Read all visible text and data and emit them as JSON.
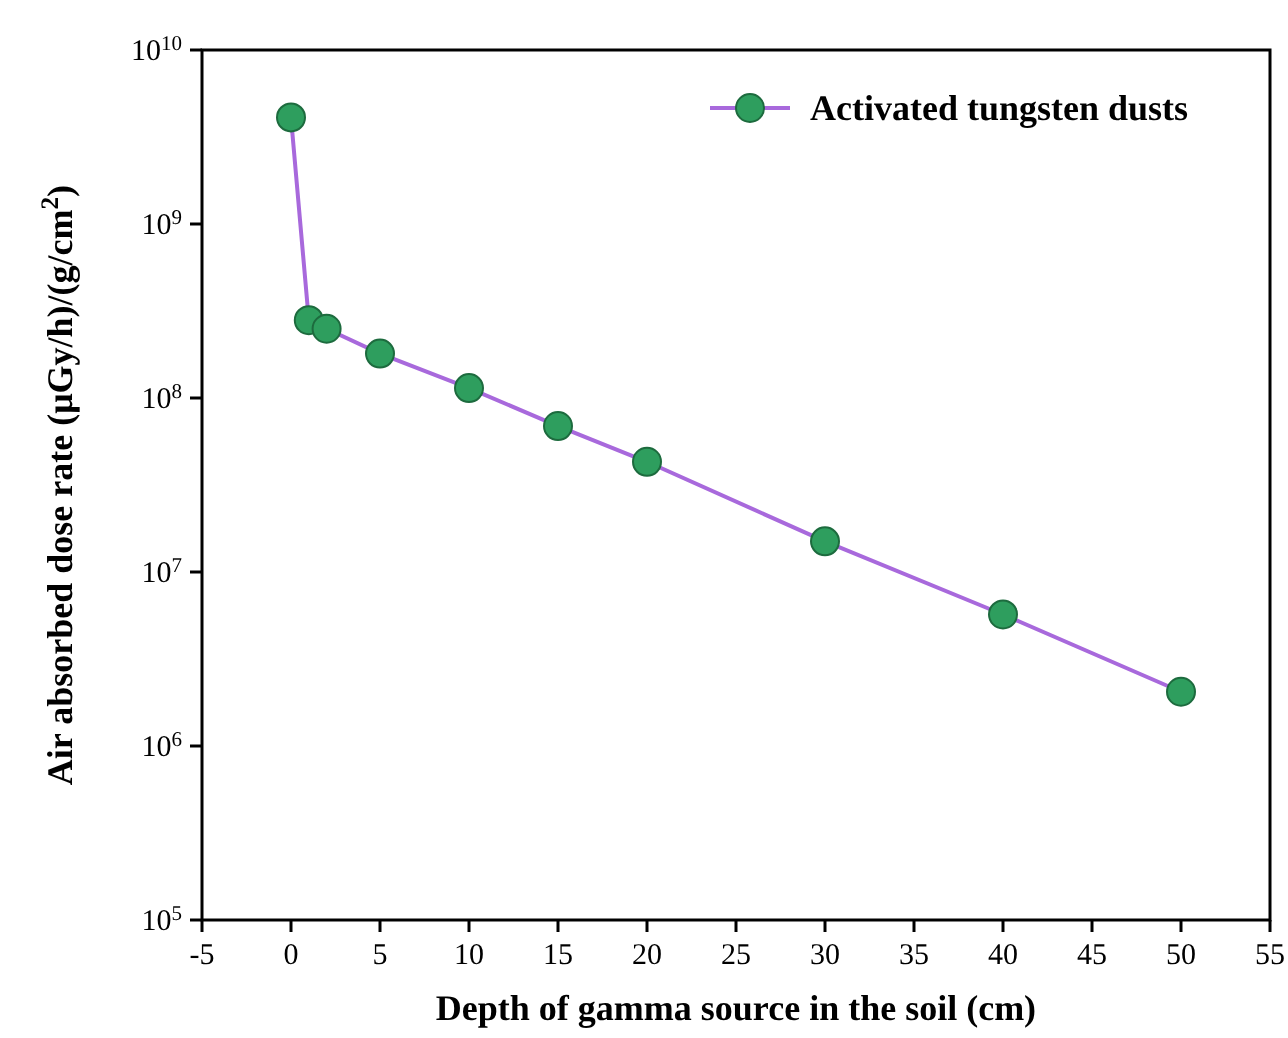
{
  "chart_data": {
    "type": "line",
    "xlabel": "Depth of gamma source in the soil (cm)",
    "ylabel": "Air absorbed dose rate (μGy/h)/(g/cm$^{2}$)",
    "x": [
      0,
      1,
      2,
      5,
      10,
      15,
      20,
      30,
      40,
      50
    ],
    "series": [
      {
        "name": "Activated tungsten dusts",
        "color": "#a869dc",
        "values": [
          4100000000.0,
          280000000.0,
          250000000.0,
          180000000.0,
          114000000.0,
          69000000.0,
          43000000.0,
          15000000.0,
          5700000.0,
          2050000.0
        ]
      }
    ],
    "xlim": [
      -5,
      55
    ],
    "xticks": [
      -5,
      0,
      5,
      10,
      15,
      20,
      25,
      30,
      35,
      40,
      45,
      50,
      55
    ],
    "ylim": [
      100000.0,
      10000000000.0
    ],
    "yticks": [
      {
        "value": 100000.0,
        "label": "10$^{5}$"
      },
      {
        "value": 1000000.0,
        "label": "10$^{6}$"
      },
      {
        "value": 10000000.0,
        "label": "10$^{7}$"
      },
      {
        "value": 100000000.0,
        "label": "10$^{8}$"
      },
      {
        "value": 1000000000.0,
        "label": "10$^{9}$"
      },
      {
        "value": 10000000000.0,
        "label": "10$^{10}$"
      }
    ],
    "log": "y",
    "marker": "circle",
    "line_style": "solid",
    "legend": "top right"
  }
}
